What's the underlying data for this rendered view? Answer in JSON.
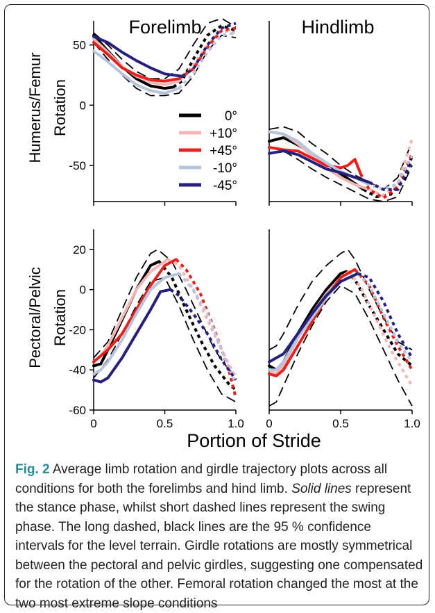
{
  "colors": {
    "level": "#000000",
    "up10": "#f2b6b6",
    "up45": "#e8211c",
    "down10": "#b8c4dc",
    "down45": "#25207a",
    "ci": "#000000",
    "caption_label": "#2a8a94"
  },
  "figure": {
    "x_axis_title": "Portion of Stride",
    "row_titles": [
      "Humerus/Femur",
      "Rotation",
      "Pectoral/Pelvic",
      "Rotation"
    ],
    "column_titles": [
      "Forelimb",
      "Hindlimb"
    ],
    "legend": [
      {
        "key": "level",
        "label": "0°"
      },
      {
        "key": "up10",
        "label": "+10°"
      },
      {
        "key": "up45",
        "label": "+45°"
      },
      {
        "key": "down10",
        "label": "-10°"
      },
      {
        "key": "down45",
        "label": "-45°"
      }
    ]
  },
  "chart_data": [
    {
      "id": "fore_limb",
      "type": "line",
      "title": "Forelimb",
      "ylabel": "Humerus/Femur Rotation",
      "xlim": [
        0,
        1
      ],
      "ylim": [
        -80,
        70
      ],
      "xticks": [
        "0",
        "0.5",
        "1.0"
      ],
      "yticks": [
        "50",
        "0",
        "-50"
      ],
      "ytick_values": [
        50,
        0,
        -50
      ],
      "stance_end": {
        "level": 0.56,
        "up10": 0.6,
        "up45": 0.6,
        "down10": 0.6,
        "down45": 0.62
      },
      "series": [
        {
          "key": "level",
          "name": "0°",
          "x": [
            0,
            0.1,
            0.2,
            0.3,
            0.4,
            0.5,
            0.56,
            0.62,
            0.7,
            0.8,
            0.9,
            1.0
          ],
          "y": [
            58,
            45,
            32,
            22,
            16,
            14,
            15,
            20,
            38,
            58,
            66,
            62
          ]
        },
        {
          "key": "up10",
          "name": "+10°",
          "x": [
            0,
            0.1,
            0.2,
            0.3,
            0.4,
            0.5,
            0.6,
            0.7,
            0.8,
            0.9,
            1.0
          ],
          "y": [
            55,
            44,
            32,
            24,
            19,
            17,
            20,
            33,
            50,
            62,
            60
          ]
        },
        {
          "key": "up45",
          "name": "+45°",
          "x": [
            0,
            0.1,
            0.2,
            0.3,
            0.4,
            0.5,
            0.6,
            0.7,
            0.8,
            0.9,
            1.0
          ],
          "y": [
            52,
            42,
            31,
            25,
            21,
            20,
            22,
            30,
            48,
            62,
            64
          ]
        },
        {
          "key": "down10",
          "name": "-10°",
          "x": [
            0,
            0.1,
            0.2,
            0.3,
            0.4,
            0.5,
            0.6,
            0.7,
            0.8,
            0.9,
            1.0
          ],
          "y": [
            45,
            36,
            26,
            17,
            12,
            10,
            14,
            26,
            44,
            58,
            60
          ]
        },
        {
          "key": "down45",
          "name": "-45°",
          "x": [
            0,
            0.1,
            0.2,
            0.3,
            0.4,
            0.5,
            0.62,
            0.7,
            0.8,
            0.9,
            1.0
          ],
          "y": [
            57,
            52,
            44,
            37,
            31,
            26,
            24,
            30,
            50,
            64,
            68
          ]
        }
      ],
      "ci_upper": {
        "x": [
          0,
          0.1,
          0.2,
          0.3,
          0.4,
          0.5,
          0.6,
          0.7,
          0.8,
          0.9,
          1.0
        ],
        "y": [
          60,
          50,
          38,
          28,
          22,
          22,
          30,
          50,
          68,
          72,
          65
        ]
      },
      "ci_lower": {
        "x": [
          0,
          0.1,
          0.2,
          0.3,
          0.4,
          0.5,
          0.6,
          0.7,
          0.8,
          0.9,
          1.0
        ],
        "y": [
          52,
          38,
          25,
          14,
          8,
          8,
          10,
          24,
          45,
          58,
          56
        ]
      }
    },
    {
      "id": "hind_limb",
      "type": "line",
      "title": "Hindlimb",
      "ylabel": "",
      "xlim": [
        0,
        1
      ],
      "ylim": [
        -80,
        70
      ],
      "xticks": [
        "0",
        "0.5",
        "1.0"
      ],
      "yticks": [],
      "stance_end": {
        "level": 0.66,
        "up10": 0.7,
        "up45": 0.64,
        "down10": 0.68,
        "down45": 0.7
      },
      "series": [
        {
          "key": "level",
          "name": "0°",
          "x": [
            0,
            0.1,
            0.2,
            0.3,
            0.4,
            0.5,
            0.6,
            0.66,
            0.75,
            0.85,
            0.95,
            1.0
          ],
          "y": [
            -30,
            -27,
            -33,
            -40,
            -48,
            -57,
            -65,
            -70,
            -76,
            -74,
            -60,
            -42
          ]
        },
        {
          "key": "up10",
          "name": "+10°",
          "x": [
            0,
            0.1,
            0.2,
            0.3,
            0.4,
            0.5,
            0.6,
            0.7,
            0.8,
            0.9,
            1.0
          ],
          "y": [
            -22,
            -24,
            -32,
            -42,
            -52,
            -60,
            -66,
            -70,
            -75,
            -65,
            -28
          ]
        },
        {
          "key": "up45",
          "name": "+45°",
          "x": [
            0,
            0.1,
            0.2,
            0.3,
            0.4,
            0.5,
            0.55,
            0.6,
            0.64,
            0.7,
            0.8,
            0.9,
            1.0
          ],
          "y": [
            -35,
            -37,
            -38,
            -44,
            -50,
            -52,
            -50,
            -45,
            -57,
            -70,
            -77,
            -68,
            -40
          ]
        },
        {
          "key": "down10",
          "name": "-10°",
          "x": [
            0,
            0.1,
            0.2,
            0.3,
            0.4,
            0.5,
            0.6,
            0.68,
            0.8,
            0.9,
            1.0
          ],
          "y": [
            -22,
            -24,
            -30,
            -40,
            -48,
            -55,
            -60,
            -65,
            -70,
            -65,
            -42
          ]
        },
        {
          "key": "down45",
          "name": "-45°",
          "x": [
            0,
            0.1,
            0.2,
            0.3,
            0.4,
            0.5,
            0.6,
            0.7,
            0.8,
            0.9,
            1.0
          ],
          "y": [
            -40,
            -38,
            -41,
            -47,
            -53,
            -56,
            -60,
            -64,
            -70,
            -70,
            -46
          ]
        }
      ],
      "ci_upper": {
        "x": [
          0,
          0.1,
          0.2,
          0.3,
          0.4,
          0.5,
          0.6,
          0.7,
          0.8,
          0.9,
          1.0
        ],
        "y": [
          -20,
          -18,
          -22,
          -32,
          -40,
          -50,
          -58,
          -64,
          -70,
          -60,
          -30
        ]
      },
      "ci_lower": {
        "x": [
          0,
          0.1,
          0.2,
          0.3,
          0.4,
          0.5,
          0.6,
          0.7,
          0.8,
          0.9,
          1.0
        ],
        "y": [
          -40,
          -38,
          -45,
          -53,
          -60,
          -66,
          -72,
          -78,
          -80,
          -76,
          -50
        ]
      }
    },
    {
      "id": "fore_girdle",
      "type": "line",
      "title": "",
      "ylabel": "Pectoral/Pelvic Rotation",
      "xlim": [
        0,
        1
      ],
      "ylim": [
        -60,
        30
      ],
      "xticks": [
        "0",
        "0.5",
        "1.0"
      ],
      "yticks": [
        "20",
        "0",
        "-20",
        "-40",
        "-60"
      ],
      "ytick_values": [
        20,
        0,
        -20,
        -40,
        -60
      ],
      "stance_end": {
        "level": 0.46,
        "up10": 0.52,
        "up45": 0.58,
        "down10": 0.6,
        "down45": 0.54
      },
      "series": [
        {
          "key": "level",
          "name": "0°",
          "x": [
            0,
            0.05,
            0.1,
            0.2,
            0.3,
            0.4,
            0.46,
            0.55,
            0.65,
            0.75,
            0.85,
            0.95,
            1.0
          ],
          "y": [
            -38,
            -37,
            -30,
            -15,
            0,
            12,
            14,
            6,
            -10,
            -25,
            -38,
            -47,
            -50
          ]
        },
        {
          "key": "up10",
          "name": "+10°",
          "x": [
            0,
            0.05,
            0.1,
            0.2,
            0.3,
            0.4,
            0.52,
            0.6,
            0.7,
            0.8,
            0.9,
            1.0
          ],
          "y": [
            -36,
            -33,
            -28,
            -14,
            0,
            9,
            15,
            12,
            0,
            -15,
            -30,
            -44
          ]
        },
        {
          "key": "up45",
          "name": "+45°",
          "x": [
            0,
            0.05,
            0.1,
            0.2,
            0.3,
            0.4,
            0.5,
            0.58,
            0.65,
            0.75,
            0.85,
            0.95,
            1.0
          ],
          "y": [
            -36,
            -33,
            -30,
            -22,
            -10,
            2,
            12,
            15,
            10,
            -2,
            -20,
            -40,
            -54
          ]
        },
        {
          "key": "down10",
          "name": "-10°",
          "x": [
            0,
            0.05,
            0.1,
            0.2,
            0.3,
            0.4,
            0.5,
            0.6,
            0.7,
            0.8,
            0.9,
            1.0
          ],
          "y": [
            -42,
            -40,
            -36,
            -25,
            -12,
            0,
            6,
            8,
            0,
            -12,
            -30,
            -47
          ]
        },
        {
          "key": "down45",
          "name": "-45°",
          "x": [
            0,
            0.05,
            0.1,
            0.2,
            0.3,
            0.4,
            0.47,
            0.54,
            0.6,
            0.7,
            0.8,
            0.9,
            1.0
          ],
          "y": [
            -45,
            -46,
            -44,
            -34,
            -22,
            -10,
            -1,
            0,
            -3,
            -12,
            -22,
            -35,
            -45
          ]
        }
      ],
      "ci_upper": {
        "x": [
          0,
          0.1,
          0.2,
          0.3,
          0.4,
          0.45,
          0.55,
          0.65,
          0.75,
          0.85,
          0.95,
          1.0
        ],
        "y": [
          -34,
          -26,
          -10,
          6,
          18,
          20,
          14,
          0,
          -15,
          -30,
          -40,
          -42
        ]
      },
      "ci_lower": {
        "x": [
          0,
          0.1,
          0.2,
          0.3,
          0.4,
          0.5,
          0.6,
          0.7,
          0.8,
          0.9,
          1.0
        ],
        "y": [
          -44,
          -35,
          -22,
          -8,
          4,
          6,
          -8,
          -25,
          -40,
          -52,
          -56
        ]
      }
    },
    {
      "id": "hind_girdle",
      "type": "line",
      "title": "",
      "ylabel": "",
      "xlim": [
        0,
        1
      ],
      "ylim": [
        -60,
        30
      ],
      "xticks": [
        "0",
        "0.5",
        "1.0"
      ],
      "yticks": [],
      "stance_end": {
        "level": 0.54,
        "up10": 0.56,
        "up45": 0.6,
        "down10": 0.62,
        "down45": 0.62
      },
      "series": [
        {
          "key": "level",
          "name": "0°",
          "x": [
            0,
            0.05,
            0.1,
            0.2,
            0.3,
            0.4,
            0.5,
            0.54,
            0.6,
            0.7,
            0.8,
            0.9,
            1.0
          ],
          "y": [
            -38,
            -40,
            -36,
            -22,
            -10,
            0,
            8,
            9,
            5,
            -8,
            -20,
            -32,
            -38
          ]
        },
        {
          "key": "up10",
          "name": "+10°",
          "x": [
            0,
            0.05,
            0.1,
            0.2,
            0.3,
            0.4,
            0.5,
            0.56,
            0.65,
            0.75,
            0.85,
            0.95,
            1.0
          ],
          "y": [
            -40,
            -42,
            -38,
            -24,
            -12,
            -2,
            6,
            9,
            0,
            -15,
            -30,
            -42,
            -48
          ]
        },
        {
          "key": "up45",
          "name": "+45°",
          "x": [
            0,
            0.05,
            0.1,
            0.2,
            0.3,
            0.4,
            0.5,
            0.6,
            0.7,
            0.8,
            0.9,
            1.0
          ],
          "y": [
            -42,
            -43,
            -40,
            -28,
            -16,
            -4,
            6,
            10,
            2,
            -14,
            -28,
            -40
          ]
        },
        {
          "key": "down10",
          "name": "-10°",
          "x": [
            0,
            0.05,
            0.1,
            0.2,
            0.3,
            0.4,
            0.5,
            0.62,
            0.7,
            0.8,
            0.9,
            1.0
          ],
          "y": [
            -40,
            -40,
            -36,
            -24,
            -14,
            -4,
            4,
            8,
            2,
            -12,
            -26,
            -36
          ]
        },
        {
          "key": "down45",
          "name": "-45°",
          "x": [
            0,
            0.05,
            0.1,
            0.2,
            0.3,
            0.4,
            0.5,
            0.62,
            0.7,
            0.8,
            0.9,
            1.0
          ],
          "y": [
            -36,
            -34,
            -32,
            -22,
            -12,
            -3,
            4,
            8,
            6,
            -6,
            -22,
            -34
          ]
        }
      ],
      "ci_upper": {
        "x": [
          0,
          0.05,
          0.1,
          0.2,
          0.3,
          0.4,
          0.5,
          0.55,
          0.6,
          0.7,
          0.8,
          0.9,
          1.0
        ],
        "y": [
          -30,
          -28,
          -22,
          -8,
          4,
          12,
          18,
          20,
          15,
          0,
          -14,
          -26,
          -30
        ]
      },
      "ci_lower": {
        "x": [
          0,
          0.05,
          0.1,
          0.2,
          0.3,
          0.4,
          0.5,
          0.6,
          0.7,
          0.8,
          0.9,
          1.0
        ],
        "y": [
          -58,
          -56,
          -48,
          -32,
          -18,
          -6,
          2,
          -2,
          -15,
          -30,
          -45,
          -58
        ]
      }
    }
  ],
  "caption": {
    "label": "Fig. 2",
    "text_1": " Average limb rotation and girdle trajectory plots across all conditions for both the forelimbs and hind limb. ",
    "italic": "Solid lines",
    "text_2": " represent the stance phase, whilst short dashed lines represent the swing phase. The long dashed, black lines are the 95 % confidence intervals for the level terrain. Girdle rotations are mostly symmetrical between the pectoral and pelvic girdles, suggesting one compensated for the rotation of the other. Femoral rotation changed the most at the two most extreme slope conditions"
  }
}
